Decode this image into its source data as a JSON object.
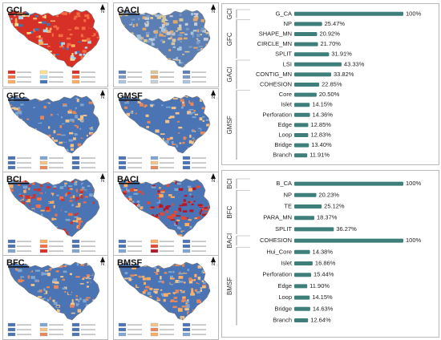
{
  "maps": [
    {
      "title": "GCI",
      "palette": [
        "#d73027",
        "#f46d43",
        "#fdae61",
        "#fee08b",
        "#abd9e9",
        "#4575b4"
      ],
      "bias": "red"
    },
    {
      "title": "GACI",
      "palette": [
        "#5b7fb4",
        "#7b9bc5",
        "#a9c4dc",
        "#d9c79a",
        "#e2a76c",
        "#c9cdd6"
      ],
      "bias": "grey"
    },
    {
      "title": "GFC",
      "palette": [
        "#4a74b4",
        "#4a74b4",
        "#4a74b4",
        "#7ea6d0",
        "#f2c48c",
        "#e8885a"
      ],
      "bias": "blue"
    },
    {
      "title": "GMSF",
      "palette": [
        "#4a74b4",
        "#4a74b4",
        "#4a74b4",
        "#7ea6d0",
        "#f2c48c",
        "#e8885a"
      ],
      "bias": "blue"
    },
    {
      "title": "BCI",
      "palette": [
        "#4a74b4",
        "#4a74b4",
        "#7ea6d0",
        "#fdae61",
        "#f46d43",
        "#d73027"
      ],
      "bias": "mixed"
    },
    {
      "title": "BACI",
      "palette": [
        "#4a74b4",
        "#4a74b4",
        "#7ea6d0",
        "#fdae61",
        "#e34a33",
        "#b2182b"
      ],
      "bias": "redcenter"
    },
    {
      "title": "BFC",
      "palette": [
        "#4a74b4",
        "#4a74b4",
        "#4a74b4",
        "#7ea6d0",
        "#f2c48c",
        "#e8885a"
      ],
      "bias": "blue"
    },
    {
      "title": "BMSF",
      "palette": [
        "#4a74b4",
        "#4a74b4",
        "#7ea6d0",
        "#f2c48c",
        "#e8885a",
        "#fdae61"
      ],
      "bias": "mixed"
    }
  ],
  "north_label": "N",
  "chart_data": [
    {
      "type": "bar",
      "bar_color": "#3f7f7b",
      "groups": [
        {
          "name": "GCI",
          "rows": [
            {
              "label": "G_CA",
              "value": 100,
              "value_label": "100%"
            }
          ]
        },
        {
          "name": "GFC",
          "rows": [
            {
              "label": "NP",
              "value": 25.47,
              "value_label": "25.47%"
            },
            {
              "label": "SHAPE_MN",
              "value": 20.92,
              "value_label": "20.92%"
            },
            {
              "label": "CIRCLE_MN",
              "value": 21.7,
              "value_label": "21.70%"
            },
            {
              "label": "SPLIT",
              "value": 31.91,
              "value_label": "31.91%"
            }
          ]
        },
        {
          "name": "GACI",
          "rows": [
            {
              "label": "LSI",
              "value": 43.33,
              "value_label": "43.33%"
            },
            {
              "label": "CONTIG_MN",
              "value": 33.82,
              "value_label": "33.82%"
            },
            {
              "label": "COHESION",
              "value": 22.85,
              "value_label": "22.85%"
            }
          ]
        },
        {
          "name": "GMSF",
          "rows": [
            {
              "label": "Core",
              "value": 20.5,
              "value_label": "20.50%"
            },
            {
              "label": "Islet",
              "value": 14.15,
              "value_label": "14.15%"
            },
            {
              "label": "Perforation",
              "value": 14.36,
              "value_label": "14.36%"
            },
            {
              "label": "Edge",
              "value": 12.85,
              "value_label": "12.85%"
            },
            {
              "label": "Loop",
              "value": 12.83,
              "value_label": "12.83%"
            },
            {
              "label": "Bridge",
              "value": 13.4,
              "value_label": "13.40%"
            },
            {
              "label": "Branch",
              "value": 11.91,
              "value_label": "11.91%"
            }
          ]
        }
      ]
    },
    {
      "type": "bar",
      "bar_color": "#3f7f7b",
      "groups": [
        {
          "name": "BCI",
          "rows": [
            {
              "label": "B_CA",
              "value": 100,
              "value_label": "100%"
            }
          ]
        },
        {
          "name": "BFC",
          "rows": [
            {
              "label": "NP",
              "value": 20.23,
              "value_label": "20.23%"
            },
            {
              "label": "TE",
              "value": 25.12,
              "value_label": "25.12%"
            },
            {
              "label": "PARA_MN",
              "value": 18.37,
              "value_label": "18.37%"
            },
            {
              "label": "SPLIT",
              "value": 36.27,
              "value_label": "36.27%"
            }
          ]
        },
        {
          "name": "BACI",
          "rows": [
            {
              "label": "COHESION",
              "value": 100,
              "value_label": "100%"
            }
          ]
        },
        {
          "name": "BMSF",
          "rows": [
            {
              "label": "Hui_Core",
              "value": 14.38,
              "value_label": "14.38%"
            },
            {
              "label": "Islet",
              "value": 16.86,
              "value_label": "16.86%"
            },
            {
              "label": "Perforation",
              "value": 15.44,
              "value_label": "15.44%"
            },
            {
              "label": "Edge",
              "value": 11.9,
              "value_label": "11.90%"
            },
            {
              "label": "Loop",
              "value": 14.15,
              "value_label": "14.15%"
            },
            {
              "label": "Bridge",
              "value": 14.63,
              "value_label": "14.63%"
            },
            {
              "label": "Branch",
              "value": 12.64,
              "value_label": "12.64%"
            }
          ]
        }
      ]
    }
  ]
}
